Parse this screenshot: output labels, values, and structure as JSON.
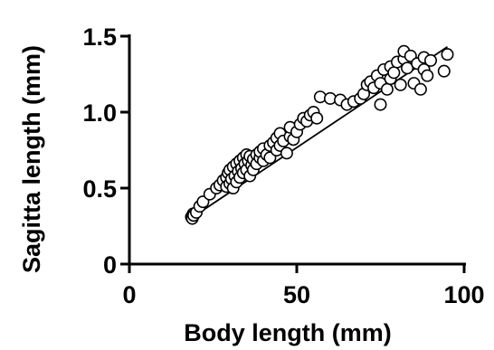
{
  "chart_data": {
    "type": "scatter",
    "title": "",
    "xlabel": "Body length (mm)",
    "ylabel": "Sagitta length (mm)",
    "xlim": [
      0,
      100
    ],
    "ylim": [
      0,
      1.5
    ],
    "xticks": [
      "0",
      "50",
      "100"
    ],
    "yticks": [
      "0",
      "0.5",
      "1.0",
      "1.5"
    ],
    "grid": false,
    "legend": "none",
    "fit_line": {
      "x": [
        19,
        95
      ],
      "y": [
        0.31,
        1.43
      ]
    },
    "points": [
      {
        "x": 18.5,
        "y": 0.31
      },
      {
        "x": 19,
        "y": 0.33
      },
      {
        "x": 18.8,
        "y": 0.3
      },
      {
        "x": 19.2,
        "y": 0.32
      },
      {
        "x": 20,
        "y": 0.34
      },
      {
        "x": 21,
        "y": 0.38
      },
      {
        "x": 22,
        "y": 0.41
      },
      {
        "x": 24,
        "y": 0.46
      },
      {
        "x": 26,
        "y": 0.5
      },
      {
        "x": 27,
        "y": 0.52
      },
      {
        "x": 28,
        "y": 0.55
      },
      {
        "x": 29,
        "y": 0.57
      },
      {
        "x": 29,
        "y": 0.51
      },
      {
        "x": 29.5,
        "y": 0.6
      },
      {
        "x": 30,
        "y": 0.53
      },
      {
        "x": 30,
        "y": 0.62
      },
      {
        "x": 30.5,
        "y": 0.56
      },
      {
        "x": 31,
        "y": 0.64
      },
      {
        "x": 31,
        "y": 0.5
      },
      {
        "x": 31.5,
        "y": 0.58
      },
      {
        "x": 32,
        "y": 0.66
      },
      {
        "x": 32,
        "y": 0.54
      },
      {
        "x": 32.5,
        "y": 0.61
      },
      {
        "x": 33,
        "y": 0.68
      },
      {
        "x": 33,
        "y": 0.57
      },
      {
        "x": 33.5,
        "y": 0.63
      },
      {
        "x": 34,
        "y": 0.7
      },
      {
        "x": 34,
        "y": 0.6
      },
      {
        "x": 34.5,
        "y": 0.66
      },
      {
        "x": 35,
        "y": 0.72
      },
      {
        "x": 35,
        "y": 0.62
      },
      {
        "x": 35.5,
        "y": 0.68
      },
      {
        "x": 36,
        "y": 0.58
      },
      {
        "x": 36,
        "y": 0.71
      },
      {
        "x": 36.5,
        "y": 0.65
      },
      {
        "x": 37,
        "y": 0.69
      },
      {
        "x": 37,
        "y": 0.62
      },
      {
        "x": 38,
        "y": 0.72
      },
      {
        "x": 38,
        "y": 0.66
      },
      {
        "x": 39,
        "y": 0.7
      },
      {
        "x": 39,
        "y": 0.74
      },
      {
        "x": 40,
        "y": 0.68
      },
      {
        "x": 40,
        "y": 0.76
      },
      {
        "x": 41,
        "y": 0.72
      },
      {
        "x": 42,
        "y": 0.78
      },
      {
        "x": 42,
        "y": 0.7
      },
      {
        "x": 43,
        "y": 0.8
      },
      {
        "x": 44,
        "y": 0.75
      },
      {
        "x": 44,
        "y": 0.83
      },
      {
        "x": 45,
        "y": 0.78
      },
      {
        "x": 45,
        "y": 0.86
      },
      {
        "x": 46,
        "y": 0.81
      },
      {
        "x": 47,
        "y": 0.73
      },
      {
        "x": 48,
        "y": 0.84
      },
      {
        "x": 48,
        "y": 0.9
      },
      {
        "x": 49,
        "y": 0.82
      },
      {
        "x": 50,
        "y": 0.87
      },
      {
        "x": 51,
        "y": 0.92
      },
      {
        "x": 52,
        "y": 0.96
      },
      {
        "x": 53,
        "y": 0.94
      },
      {
        "x": 54,
        "y": 0.98
      },
      {
        "x": 55,
        "y": 1.0
      },
      {
        "x": 56,
        "y": 0.96
      },
      {
        "x": 57,
        "y": 1.1
      },
      {
        "x": 60,
        "y": 1.09
      },
      {
        "x": 63,
        "y": 1.08
      },
      {
        "x": 65,
        "y": 1.05
      },
      {
        "x": 67,
        "y": 1.07
      },
      {
        "x": 69,
        "y": 1.09
      },
      {
        "x": 70,
        "y": 1.12
      },
      {
        "x": 71,
        "y": 1.18
      },
      {
        "x": 72,
        "y": 1.2
      },
      {
        "x": 73,
        "y": 1.16
      },
      {
        "x": 74,
        "y": 1.24
      },
      {
        "x": 75,
        "y": 1.05
      },
      {
        "x": 75,
        "y": 1.19
      },
      {
        "x": 76,
        "y": 1.28
      },
      {
        "x": 77,
        "y": 1.15
      },
      {
        "x": 78,
        "y": 1.22
      },
      {
        "x": 78,
        "y": 1.3
      },
      {
        "x": 79,
        "y": 1.26
      },
      {
        "x": 80,
        "y": 1.33
      },
      {
        "x": 81,
        "y": 1.18
      },
      {
        "x": 82,
        "y": 1.35
      },
      {
        "x": 82,
        "y": 1.4
      },
      {
        "x": 83,
        "y": 1.29
      },
      {
        "x": 84,
        "y": 1.37
      },
      {
        "x": 85,
        "y": 1.19
      },
      {
        "x": 86,
        "y": 1.32
      },
      {
        "x": 87,
        "y": 1.15
      },
      {
        "x": 88,
        "y": 1.36
      },
      {
        "x": 88,
        "y": 1.28
      },
      {
        "x": 89,
        "y": 1.24
      },
      {
        "x": 90,
        "y": 1.34
      },
      {
        "x": 94,
        "y": 1.27
      },
      {
        "x": 95,
        "y": 1.38
      }
    ]
  }
}
